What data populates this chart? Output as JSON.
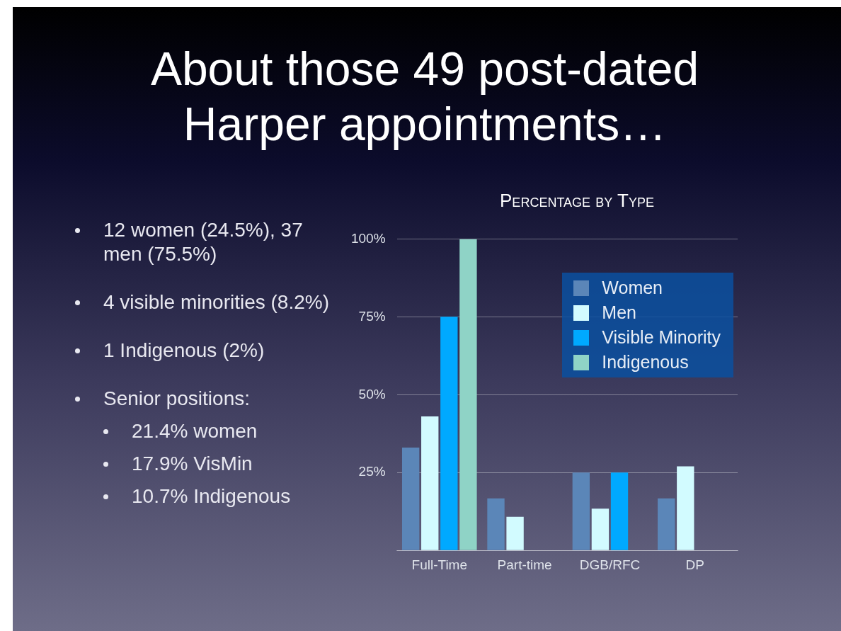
{
  "chart_data": {
    "type": "bar",
    "title": "About those 49 post-dated Harper appointments…",
    "subtitle": "Percentage by Type",
    "categories": [
      "Full-Time",
      "Part-time",
      "DGB/RFC",
      "DP"
    ],
    "series": [
      {
        "name": "Women",
        "color": "#5b86b8",
        "values": [
          33,
          16.7,
          25,
          16.7
        ]
      },
      {
        "name": "Men",
        "color": "#d2fbff",
        "values": [
          43,
          10.8,
          13.4,
          27
        ]
      },
      {
        "name": "Visible Minority",
        "color": "#00a9ff",
        "values": [
          75,
          null,
          25,
          null
        ]
      },
      {
        "name": "Indigenous",
        "color": "#8fd3c6",
        "values": [
          100,
          null,
          null,
          null
        ]
      }
    ],
    "ylim": [
      0,
      100
    ],
    "yticks": [
      {
        "value": 0,
        "label": null
      },
      {
        "value": 25,
        "label": "25%"
      },
      {
        "value": 50,
        "label": "50%"
      },
      {
        "value": 75,
        "label": "75%"
      },
      {
        "value": 100,
        "label": "100%"
      }
    ],
    "grid": "y",
    "legend": "top right",
    "annotations": [
      "12 women (24.5%), 37 men (75.5%)",
      "4 visible minorities (8.2%)",
      "1 Indigenous (2%)",
      "Senior positions:",
      "21.4% women",
      "17.9% VisMin",
      "10.7% Indigenous"
    ]
  }
}
